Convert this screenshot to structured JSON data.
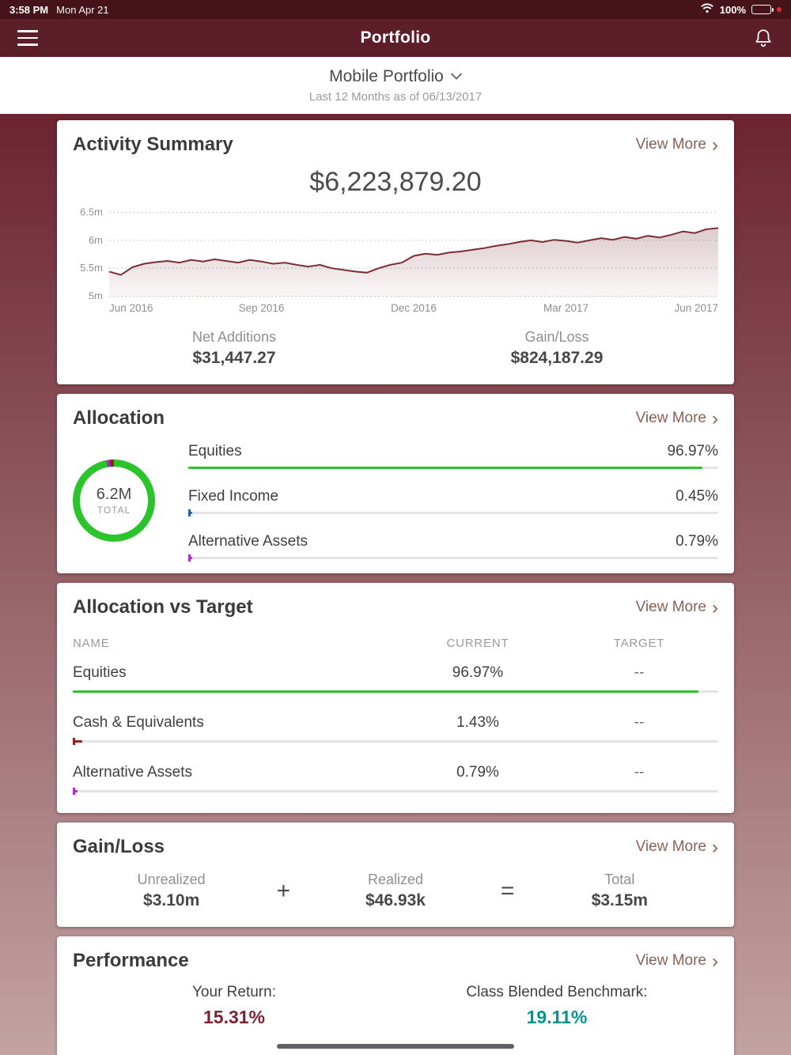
{
  "status_bar": {
    "time": "3:58 PM",
    "date": "Mon Apr 21",
    "battery": "100%"
  },
  "nav": {
    "title": "Portfolio"
  },
  "subheader": {
    "portfolio_name": "Mobile Portfolio",
    "period": "Last 12 Months as of 06/13/2017"
  },
  "ui": {
    "chevron_right": "›",
    "plus": "+",
    "equals": "="
  },
  "colors": {
    "header": "#5c1e28",
    "statusbar": "#47131b",
    "view_more": "#8a6157",
    "equities_green": "#2bc42b",
    "fixed_income_blue": "#2e5fa8",
    "alternative_purple": "#a832cf",
    "cash_red": "#9e1b20",
    "donut_remainder": "#9e1b20",
    "return_maroon": "#7c2230",
    "benchmark_teal": "#00968f",
    "chart_line": "#7a2e35"
  },
  "activity": {
    "title": "Activity Summary",
    "view_more": "View More",
    "total": "$6,223,879.20",
    "net_additions_label": "Net Additions",
    "net_additions": "$31,447.27",
    "gain_loss_label": "Gain/Loss",
    "gain_loss": "$824,187.29"
  },
  "chart_data": {
    "type": "area",
    "title": "Portfolio value, last 12 months",
    "x_labels": [
      "Jun 2016",
      "Sep 2016",
      "Dec 2016",
      "Mar 2017",
      "Jun 2017"
    ],
    "y_ticks": [
      {
        "label": "6.5m",
        "value": 6.5
      },
      {
        "label": "6m",
        "value": 6.0
      },
      {
        "label": "5.5m",
        "value": 5.5
      },
      {
        "label": "5m",
        "value": 5.0
      }
    ],
    "ylim": [
      4.95,
      6.65
    ],
    "line_color": "#7a2e35",
    "values_millions": [
      5.44,
      5.38,
      5.52,
      5.58,
      5.61,
      5.63,
      5.6,
      5.65,
      5.62,
      5.66,
      5.63,
      5.6,
      5.65,
      5.62,
      5.58,
      5.6,
      5.56,
      5.53,
      5.56,
      5.5,
      5.47,
      5.44,
      5.42,
      5.5,
      5.56,
      5.6,
      5.72,
      5.76,
      5.74,
      5.78,
      5.8,
      5.83,
      5.86,
      5.9,
      5.93,
      5.97,
      6.0,
      5.97,
      6.01,
      5.99,
      5.96,
      6.0,
      6.04,
      6.01,
      6.06,
      6.03,
      6.08,
      6.05,
      6.1,
      6.16,
      6.13,
      6.2,
      6.22
    ]
  },
  "allocation": {
    "title": "Allocation",
    "view_more": "View More",
    "donut": {
      "total": "6.2M",
      "total_label": "TOTAL"
    },
    "rows": [
      {
        "label": "Equities",
        "pct": "96.97%",
        "value": 96.97,
        "color": "#2bc42b"
      },
      {
        "label": "Fixed Income",
        "pct": "0.45%",
        "value": 0.45,
        "color": "#2e5fa8"
      },
      {
        "label": "Alternative Assets",
        "pct": "0.79%",
        "value": 0.79,
        "color": "#a832cf"
      }
    ]
  },
  "allocation_vs_target": {
    "title": "Allocation vs Target",
    "view_more": "View More",
    "headers": {
      "name": "NAME",
      "current": "CURRENT",
      "target": "TARGET"
    },
    "rows": [
      {
        "name": "Equities",
        "current": "96.97%",
        "value": 96.97,
        "target": "--",
        "color": "#2bc42b"
      },
      {
        "name": "Cash & Equivalents",
        "current": "1.43%",
        "value": 1.43,
        "target": "--",
        "color": "#9e1b20"
      },
      {
        "name": "Alternative Assets",
        "current": "0.79%",
        "value": 0.79,
        "target": "--",
        "color": "#a832cf"
      }
    ]
  },
  "gain_loss": {
    "title": "Gain/Loss",
    "view_more": "View More",
    "unrealized_label": "Unrealized",
    "unrealized": "$3.10m",
    "realized_label": "Realized",
    "realized": "$46.93k",
    "total_label": "Total",
    "total": "$3.15m"
  },
  "performance": {
    "title": "Performance",
    "view_more": "View More",
    "your_return_label": "Your Return:",
    "your_return": "15.31%",
    "benchmark_label": "Class Blended Benchmark:",
    "benchmark": "19.11%"
  }
}
